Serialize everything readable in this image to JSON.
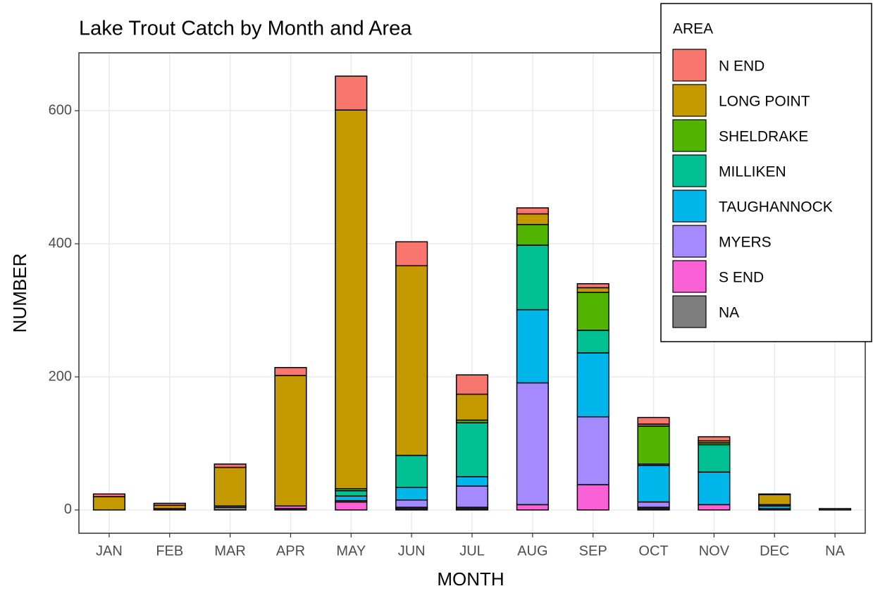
{
  "chart_data": {
    "type": "stacked_bar",
    "title": "Lake Trout Catch by Month and Area",
    "x_label": "MONTH",
    "y_label": "NUMBER",
    "legend_title": "AREA",
    "categories": [
      "JAN",
      "FEB",
      "MAR",
      "APR",
      "MAY",
      "JUN",
      "JUL",
      "AUG",
      "SEP",
      "OCT",
      "NOV",
      "DEC",
      "NA"
    ],
    "series": [
      {
        "name": "N END",
        "color": "#F8766D",
        "values": [
          4,
          3,
          5,
          12,
          51,
          36,
          29,
          9,
          6,
          10,
          6,
          1,
          0
        ]
      },
      {
        "name": "LONG POINT",
        "color": "#C49A00",
        "values": [
          20,
          5,
          58,
          196,
          569,
          285,
          39,
          16,
          7,
          3,
          3,
          15,
          0
        ]
      },
      {
        "name": "SHELDRAKE",
        "color": "#53B400",
        "values": [
          0,
          0,
          0,
          0,
          3,
          0,
          4,
          31,
          57,
          57,
          3,
          0,
          0
        ]
      },
      {
        "name": "MILLIKEN",
        "color": "#00C094",
        "values": [
          0,
          0,
          0,
          0,
          8,
          48,
          81,
          97,
          34,
          2,
          41,
          2,
          0
        ]
      },
      {
        "name": "TAUGHANNOCK",
        "color": "#00B6EB",
        "values": [
          0,
          0,
          0,
          0,
          7,
          19,
          14,
          110,
          96,
          55,
          49,
          4,
          0
        ]
      },
      {
        "name": "MYERS",
        "color": "#A58AFF",
        "values": [
          0,
          0,
          2,
          0,
          2,
          11,
          32,
          183,
          102,
          8,
          0,
          0,
          0
        ]
      },
      {
        "name": "S END",
        "color": "#FB61D7",
        "values": [
          0,
          0,
          0,
          4,
          12,
          2,
          2,
          8,
          38,
          2,
          8,
          0,
          0
        ]
      },
      {
        "name": "NA",
        "color": "#7F7F7F",
        "values": [
          0,
          2,
          4,
          2,
          0,
          2,
          2,
          0,
          0,
          2,
          0,
          2,
          2
        ]
      }
    ],
    "stack_order": "last series at bottom",
    "ylim": [
      -35,
      687
    ],
    "yticks": [
      0,
      200,
      400,
      600
    ],
    "grid": true,
    "legend": "top-right"
  }
}
